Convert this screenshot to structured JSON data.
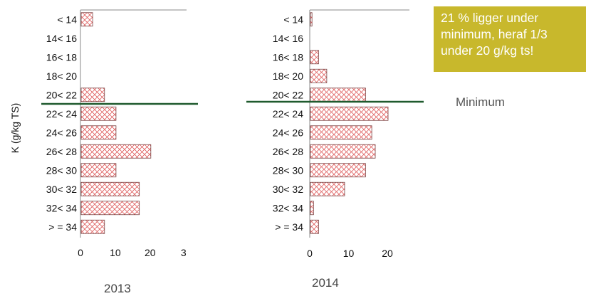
{
  "chart_data": [
    {
      "type": "bar",
      "orientation": "horizontal",
      "title": "2013",
      "ylabel": "K (g/kg TS)",
      "categories": [
        "< 14",
        "14< 16",
        "16< 18",
        "18< 20",
        "20< 22",
        "22< 24",
        "24< 26",
        "26< 28",
        "28< 30",
        "30< 32",
        "32< 34",
        "> = 34"
      ],
      "values": [
        3.3,
        0,
        0,
        0,
        6.7,
        10,
        10,
        20,
        10,
        16.7,
        16.7,
        6.7
      ],
      "xlim": [
        0,
        30
      ],
      "xticks": [
        "0",
        "10",
        "20",
        "3"
      ],
      "bar_color": "#e06060",
      "grid": false
    },
    {
      "type": "bar",
      "orientation": "horizontal",
      "title": "2014",
      "categories": [
        "< 14",
        "14< 16",
        "16< 18",
        "18< 20",
        "20< 22",
        "22< 24",
        "24< 26",
        "26< 28",
        "28< 30",
        "30< 32",
        "32< 34",
        "> = 34"
      ],
      "values": [
        0.4,
        0,
        2.1,
        4.2,
        14.2,
        20,
        15.8,
        16.7,
        14.2,
        8.8,
        0.8,
        2.1
      ],
      "xlim": [
        0,
        25
      ],
      "xticks": [
        "0",
        "10",
        "20"
      ],
      "bar_color": "#e06060",
      "grid": false
    }
  ],
  "annotations": {
    "callout_lines": [
      "21 % ligger under",
      "minimum, heraf 1/3",
      "under 20 g/kg ts!"
    ],
    "minimum_label": "Minimum",
    "minimum_color": "#1f5a2e",
    "callout_color": "#c8b82c"
  }
}
